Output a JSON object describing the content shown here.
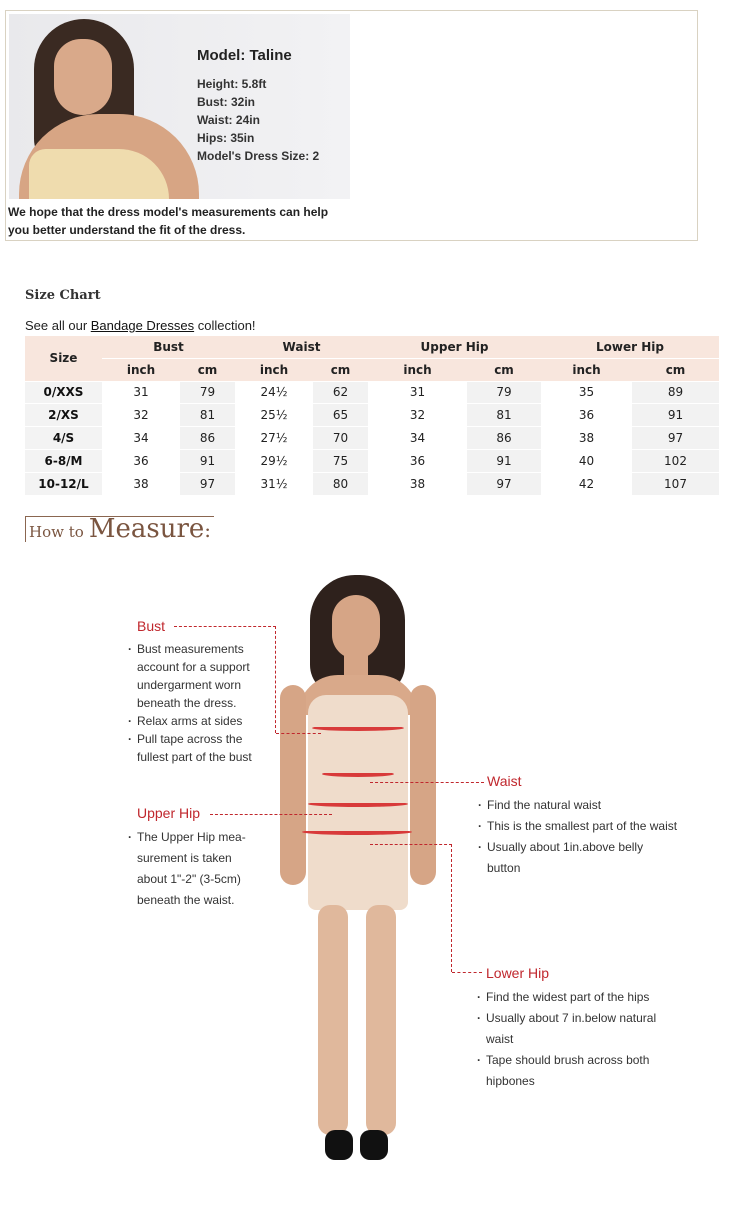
{
  "model": {
    "name": "Model: Taline",
    "stats": [
      "Height: 5.8ft",
      "Bust: 32in",
      "Waist: 24in",
      "Hips: 35in",
      "Model's Dress Size: 2"
    ],
    "note": "We hope that the dress model's measurements can help you better understand the fit of the dress."
  },
  "size_chart": {
    "title": "Size Chart",
    "see_prefix": "See all our ",
    "link": "Bandage Dresses",
    "see_suffix": " collection!",
    "headers": {
      "size": "Size",
      "groups": [
        "Bust",
        "Waist",
        "Upper Hip",
        "Lower Hip"
      ],
      "units": [
        "inch",
        "cm",
        "inch",
        "cm",
        "inch",
        "cm",
        "inch",
        "cm"
      ]
    },
    "rows": [
      [
        "0/XXS",
        "31",
        "79",
        "24½",
        "62",
        "31",
        "79",
        "35",
        "89"
      ],
      [
        "2/XS",
        "32",
        "81",
        "25½",
        "65",
        "32",
        "81",
        "36",
        "91"
      ],
      [
        "4/S",
        "34",
        "86",
        "27½",
        "70",
        "34",
        "86",
        "38",
        "97"
      ],
      [
        "6-8/M",
        "36",
        "91",
        "29½",
        "75",
        "36",
        "91",
        "40",
        "102"
      ],
      [
        "10-12/L",
        "38",
        "97",
        "31½",
        "80",
        "38",
        "97",
        "42",
        "107"
      ]
    ]
  },
  "how_to": {
    "small": "How to",
    "big": "Measure"
  },
  "measure": {
    "bust": {
      "label": "Bust",
      "items": [
        "Bust measurements account for a support undergarment worn beneath the dress.",
        "Relax arms at sides",
        "Pull tape across the fullest part of the bust"
      ]
    },
    "upper_hip": {
      "label": "Upper Hip",
      "items": [
        "The Upper Hip mea-surement is taken about 1\"-2\" (3-5cm) beneath the waist."
      ]
    },
    "waist": {
      "label": "Waist",
      "items": [
        "Find the natural waist",
        "This is the smallest part of the waist",
        "Usually about 1in.above belly button"
      ]
    },
    "lower_hip": {
      "label": "Lower Hip",
      "items": [
        "Find the widest part of the hips",
        "Usually about 7 in.below natural waist",
        "Tape should brush across both hipbones"
      ]
    }
  },
  "colors": {
    "accent": "#c0272d",
    "header_bg": "#f8e6dd",
    "title_brown": "#7a5540"
  }
}
